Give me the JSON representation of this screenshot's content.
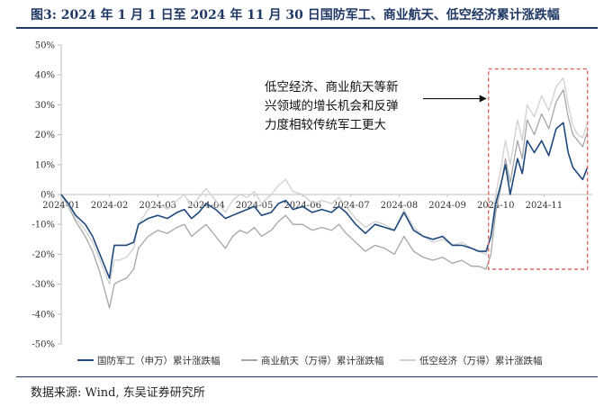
{
  "figure": {
    "title": "图3:  2024 年 1 月 1 日至 2024 年 11 月 30 日国防军工、商业航天、低空经济累计涨跌幅",
    "source": "数据来源:  Wind,  东吴证券研究所"
  },
  "chart_data": {
    "type": "line",
    "title": "",
    "xlabel": "",
    "ylabel": "",
    "x_ticks": [
      "2024-01",
      "2024-02",
      "2024-03",
      "2024-04",
      "2024-05",
      "2024-06",
      "2024-07",
      "2024-08",
      "2024-09",
      "2024-10",
      "2024-11"
    ],
    "y_ticks": [
      "50%",
      "40%",
      "30%",
      "20%",
      "10%",
      "0%",
      "-10%",
      "-20%",
      "-30%",
      "-40%",
      "-50%"
    ],
    "ylim": [
      -50,
      50
    ],
    "x_range_months": [
      0,
      11
    ],
    "unit": "%",
    "annotation": {
      "lines": [
        "低空经济、商业航天等新",
        "兴领域的增长机会和反弹",
        "力度相较传统军工更大"
      ],
      "highlight_box_months": [
        8.85,
        10.9
      ],
      "highlight_box_values": [
        42,
        -25
      ],
      "arrow": "to-highlight-box"
    },
    "series": [
      {
        "name": "国防军工（申万）累计涨跌幅",
        "color": "#1f497d",
        "x": [
          0,
          0.15,
          0.3,
          0.5,
          0.65,
          0.8,
          0.9,
          1.0,
          1.05,
          1.1,
          1.2,
          1.35,
          1.5,
          1.6,
          1.8,
          2.0,
          2.2,
          2.4,
          2.55,
          2.7,
          2.85,
          3.0,
          3.2,
          3.4,
          3.55,
          3.7,
          3.85,
          4.0,
          4.15,
          4.35,
          4.5,
          4.65,
          4.8,
          5.0,
          5.2,
          5.4,
          5.6,
          5.75,
          5.9,
          6.1,
          6.3,
          6.5,
          6.7,
          6.9,
          7.1,
          7.3,
          7.5,
          7.7,
          7.9,
          8.1,
          8.3,
          8.5,
          8.65,
          8.8,
          8.9,
          9.0,
          9.1,
          9.2,
          9.3,
          9.45,
          9.55,
          9.65,
          9.8,
          9.95,
          10.1,
          10.25,
          10.4,
          10.5,
          10.6,
          10.7,
          10.8,
          10.9
        ],
        "values": [
          0,
          -3,
          -7,
          -10,
          -14,
          -20,
          -24,
          -28,
          -22,
          -17,
          -17,
          -17,
          -16,
          -10,
          -8,
          -7,
          -8,
          -6,
          -5,
          -8,
          -6,
          -3,
          -5,
          -8,
          -7,
          -6,
          -5,
          -4,
          -7,
          -6,
          -3,
          -2,
          -5,
          -4,
          -6,
          -5,
          -6,
          -4,
          -6,
          -10,
          -13,
          -10,
          -11,
          -12,
          -6,
          -12,
          -14,
          -15,
          -14,
          -17,
          -17,
          -18,
          -19,
          -19,
          -14,
          -3,
          3,
          10,
          0,
          12,
          7,
          18,
          14,
          18,
          13,
          22,
          24,
          14,
          9,
          7,
          5,
          9
        ]
      },
      {
        "name": "商业航天（万得）累计涨跌幅",
        "color": "#a6a6a6",
        "x": [
          0,
          0.15,
          0.3,
          0.5,
          0.65,
          0.8,
          0.9,
          1.0,
          1.05,
          1.1,
          1.2,
          1.35,
          1.5,
          1.6,
          1.8,
          2.0,
          2.2,
          2.4,
          2.55,
          2.7,
          2.85,
          3.0,
          3.2,
          3.4,
          3.55,
          3.7,
          3.85,
          4.0,
          4.15,
          4.35,
          4.5,
          4.65,
          4.8,
          5.0,
          5.2,
          5.4,
          5.6,
          5.75,
          5.9,
          6.1,
          6.3,
          6.5,
          6.7,
          6.9,
          7.1,
          7.3,
          7.5,
          7.7,
          7.9,
          8.1,
          8.3,
          8.5,
          8.65,
          8.8,
          8.9,
          9.0,
          9.1,
          9.2,
          9.3,
          9.45,
          9.55,
          9.65,
          9.8,
          9.95,
          10.1,
          10.25,
          10.4,
          10.5,
          10.6,
          10.7,
          10.8,
          10.9
        ],
        "values": [
          0,
          -4,
          -9,
          -14,
          -19,
          -26,
          -32,
          -38,
          -34,
          -30,
          -29,
          -28,
          -25,
          -18,
          -14,
          -12,
          -13,
          -11,
          -10,
          -14,
          -12,
          -10,
          -14,
          -18,
          -14,
          -12,
          -13,
          -11,
          -14,
          -12,
          -9,
          -7,
          -10,
          -10,
          -12,
          -11,
          -12,
          -10,
          -13,
          -16,
          -19,
          -17,
          -18,
          -20,
          -14,
          -19,
          -21,
          -22,
          -21,
          -23,
          -22,
          -24,
          -24,
          -25,
          -20,
          -6,
          2,
          12,
          4,
          18,
          12,
          25,
          20,
          27,
          22,
          31,
          35,
          26,
          20,
          18,
          16,
          21
        ]
      },
      {
        "name": "低空经济（万得）累计涨跌幅",
        "color": "#d0d0d0",
        "x": [
          0,
          0.15,
          0.3,
          0.5,
          0.65,
          0.8,
          0.9,
          1.0,
          1.05,
          1.1,
          1.2,
          1.35,
          1.5,
          1.6,
          1.8,
          2.0,
          2.2,
          2.4,
          2.55,
          2.7,
          2.85,
          3.0,
          3.2,
          3.4,
          3.55,
          3.7,
          3.85,
          4.0,
          4.15,
          4.35,
          4.5,
          4.65,
          4.8,
          5.0,
          5.2,
          5.4,
          5.6,
          5.75,
          5.9,
          6.1,
          6.3,
          6.5,
          6.7,
          6.9,
          7.1,
          7.3,
          7.5,
          7.7,
          7.9,
          8.1,
          8.3,
          8.5,
          8.65,
          8.8,
          8.9,
          9.0,
          9.1,
          9.2,
          9.3,
          9.45,
          9.55,
          9.65,
          9.8,
          9.95,
          10.1,
          10.25,
          10.4,
          10.5,
          10.6,
          10.7,
          10.8,
          10.9
        ],
        "values": [
          0,
          -3,
          -8,
          -12,
          -16,
          -22,
          -26,
          -30,
          -26,
          -22,
          -22,
          -21,
          -18,
          -10,
          -5,
          -3,
          -5,
          -2,
          0,
          -4,
          -1,
          2,
          -2,
          -6,
          -2,
          0,
          -1,
          1,
          -3,
          0,
          3,
          5,
          1,
          0,
          -3,
          -2,
          -3,
          -1,
          -4,
          -8,
          -11,
          -9,
          -10,
          -12,
          -5,
          -11,
          -14,
          -16,
          -15,
          -17,
          -16,
          -18,
          -19,
          -20,
          -14,
          0,
          8,
          18,
          10,
          25,
          18,
          30,
          26,
          33,
          28,
          36,
          39,
          30,
          23,
          20,
          19,
          24
        ]
      }
    ]
  }
}
